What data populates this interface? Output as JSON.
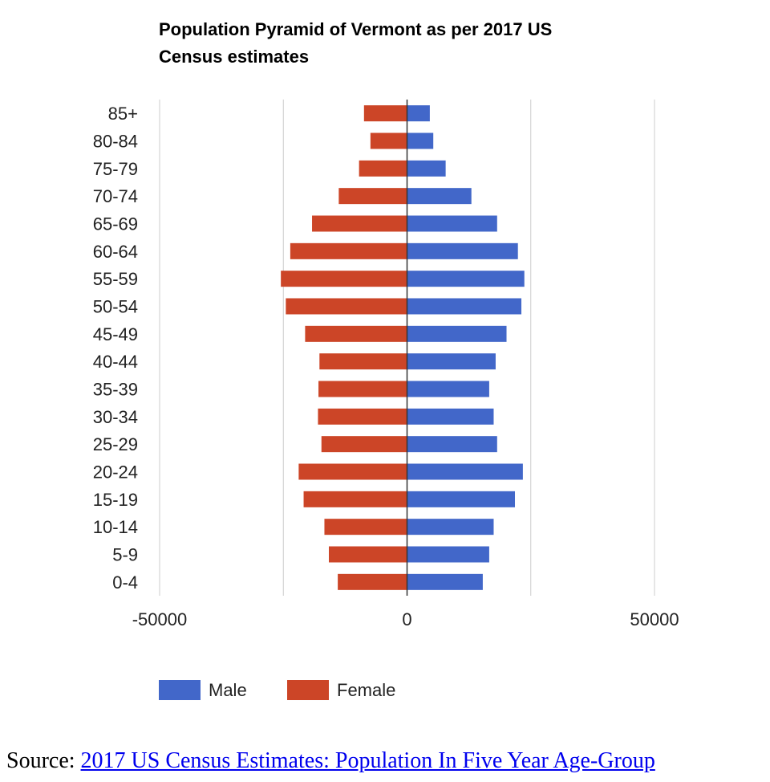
{
  "chart_data": {
    "type": "bar",
    "orientation": "horizontal",
    "title_lines": [
      "Population Pyramid of Vermont as per 2017 US",
      "Census estimates"
    ],
    "categories": [
      "85+",
      "80-84",
      "75-79",
      "70-74",
      "65-69",
      "60-64",
      "55-59",
      "50-54",
      "45-49",
      "40-44",
      "35-39",
      "30-34",
      "25-29",
      "20-24",
      "15-19",
      "10-14",
      "5-9",
      "0-4"
    ],
    "series": [
      {
        "name": "Male",
        "color": "#4267c9",
        "values": [
          4600,
          5300,
          7800,
          13000,
          18200,
          22400,
          23700,
          23100,
          20100,
          17900,
          16600,
          17500,
          18200,
          23400,
          21800,
          17500,
          16600,
          15300
        ]
      },
      {
        "name": "Female",
        "color": "#cc4527",
        "values": [
          -8700,
          -7400,
          -9700,
          -13800,
          -19200,
          -23600,
          -25500,
          -24500,
          -20600,
          -17700,
          -17900,
          -18000,
          -17300,
          -21900,
          -20900,
          -16700,
          -15800,
          -14000
        ]
      }
    ],
    "xlim": [
      -50000,
      50000
    ],
    "xticks": [
      -50000,
      0,
      50000
    ],
    "xtick_labels": [
      "-50000",
      "0",
      "50000"
    ],
    "xlabel": "",
    "ylabel": "",
    "grid": true,
    "legend_position": "bottom",
    "legend_order": [
      "Male",
      "Female"
    ]
  },
  "source": {
    "label": "Source:",
    "link_text": "2017 US Census Estimates: Population In Five Year Age-Group"
  }
}
